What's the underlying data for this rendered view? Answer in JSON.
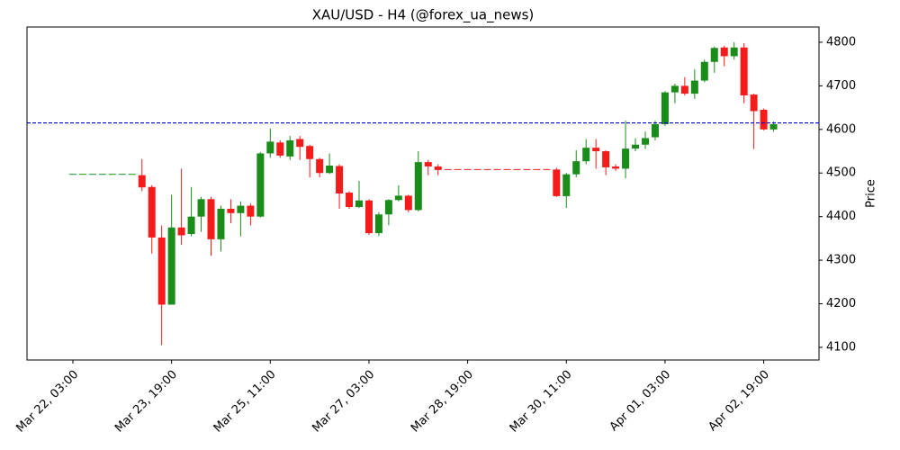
{
  "chart_data": {
    "type": "candlestick",
    "title": "XAU/USD - H4 (@forex_ua_news)",
    "y_label": "Price",
    "categories": [
      "Mar 22, 03:00",
      null,
      null,
      null,
      null,
      null,
      null,
      null,
      null,
      null,
      "Mar 23, 19:00",
      null,
      null,
      null,
      null,
      null,
      null,
      null,
      null,
      null,
      "Mar 25, 11:00",
      null,
      null,
      null,
      null,
      null,
      null,
      null,
      null,
      null,
      "Mar 27, 03:00",
      null,
      null,
      null,
      null,
      null,
      null,
      null,
      null,
      null,
      "Mar 28, 19:00",
      null,
      null,
      null,
      null,
      null,
      null,
      null,
      null,
      null,
      "Mar 30, 11:00",
      null,
      null,
      null,
      null,
      null,
      null,
      null,
      null,
      null,
      "Apr 01, 03:00",
      null,
      null,
      null,
      null,
      null,
      null,
      null,
      null,
      null,
      "Apr 02, 19:00",
      null
    ],
    "open": [
      4497,
      4497,
      4497,
      4497,
      4497,
      4497,
      4497,
      4495,
      4468,
      4352,
      4198,
      4375,
      4360,
      4400,
      4440,
      4348,
      4418,
      4408,
      4425,
      4400,
      4545,
      4570,
      4538,
      4578,
      4562,
      4532,
      4500,
      4516,
      4455,
      4422,
      4437,
      4362,
      4405,
      4438,
      4448,
      4415,
      4525,
      4515,
      4508,
      4508,
      4508,
      4508,
      4508,
      4508,
      4508,
      4508,
      4508,
      4508,
      4508,
      4508,
      4447,
      4497,
      4527,
      4558,
      4550,
      4515,
      4510,
      4556,
      4565,
      4582,
      4612,
      4685,
      4700,
      4682,
      4712,
      4755,
      4788,
      4768,
      4788,
      4680,
      4645,
      4600
    ],
    "high": [
      4497,
      4497,
      4497,
      4497,
      4497,
      4497,
      4497,
      4532,
      4472,
      4380,
      4450,
      4510,
      4468,
      4445,
      4445,
      4425,
      4440,
      4435,
      4430,
      4548,
      4602,
      4575,
      4585,
      4585,
      4565,
      4535,
      4545,
      4520,
      4458,
      4482,
      4440,
      4410,
      4440,
      4472,
      4450,
      4550,
      4530,
      4520,
      4508,
      4508,
      4508,
      4508,
      4508,
      4508,
      4508,
      4508,
      4508,
      4508,
      4508,
      4512,
      4500,
      4552,
      4578,
      4578,
      4552,
      4520,
      4620,
      4580,
      4595,
      4620,
      4688,
      4705,
      4720,
      4738,
      4760,
      4790,
      4792,
      4800,
      4798,
      4682,
      4648,
      4618
    ],
    "low": [
      4497,
      4497,
      4497,
      4497,
      4497,
      4497,
      4497,
      4458,
      4315,
      4105,
      4198,
      4335,
      4355,
      4365,
      4310,
      4320,
      4385,
      4355,
      4380,
      4398,
      4535,
      4535,
      4530,
      4530,
      4490,
      4490,
      4498,
      4418,
      4418,
      4420,
      4358,
      4355,
      4380,
      4435,
      4410,
      4412,
      4495,
      4495,
      4508,
      4508,
      4508,
      4508,
      4508,
      4508,
      4508,
      4508,
      4508,
      4508,
      4508,
      4445,
      4420,
      4490,
      4520,
      4510,
      4495,
      4505,
      4488,
      4550,
      4555,
      4575,
      4608,
      4660,
      4678,
      4670,
      4708,
      4730,
      4745,
      4760,
      4660,
      4555,
      4598,
      4595
    ],
    "close": [
      4497,
      4497,
      4497,
      4497,
      4497,
      4497,
      4497,
      4467,
      4352,
      4198,
      4375,
      4357,
      4400,
      4440,
      4348,
      4418,
      4408,
      4425,
      4400,
      4545,
      4572,
      4540,
      4575,
      4560,
      4532,
      4500,
      4517,
      4453,
      4422,
      4437,
      4362,
      4405,
      4438,
      4448,
      4415,
      4525,
      4515,
      4507,
      4508,
      4508,
      4508,
      4508,
      4508,
      4508,
      4508,
      4508,
      4508,
      4508,
      4508,
      4447,
      4497,
      4527,
      4558,
      4550,
      4513,
      4510,
      4556,
      4565,
      4580,
      4612,
      4685,
      4700,
      4682,
      4712,
      4755,
      4787,
      4768,
      4788,
      4678,
      4642,
      4600,
      4612
    ],
    "colors": [
      "#1a8c1a",
      "#1a8c1a",
      "#1a8c1a",
      "#1a8c1a",
      "#1a8c1a",
      "#1a8c1a",
      "#1a8c1a",
      "#f51b1b",
      "#f51b1b",
      "#f51b1b",
      "#1a8c1a",
      "#f51b1b",
      "#1a8c1a",
      "#1a8c1a",
      "#f51b1b",
      "#1a8c1a",
      "#f51b1b",
      "#1a8c1a",
      "#f51b1b",
      "#1a8c1a",
      "#1a8c1a",
      "#f51b1b",
      "#1a8c1a",
      "#f51b1b",
      "#f51b1b",
      "#f51b1b",
      "#1a8c1a",
      "#f51b1b",
      "#f51b1b",
      "#1a8c1a",
      "#f51b1b",
      "#1a8c1a",
      "#1a8c1a",
      "#1a8c1a",
      "#f51b1b",
      "#1a8c1a",
      "#f51b1b",
      "#f51b1b",
      "#f51b1b",
      "#f51b1b",
      "#f51b1b",
      "#f51b1b",
      "#f51b1b",
      "#f51b1b",
      "#f51b1b",
      "#f51b1b",
      "#f51b1b",
      "#f51b1b",
      "#f51b1b",
      "#f51b1b",
      "#1a8c1a",
      "#1a8c1a",
      "#1a8c1a",
      "#f51b1b",
      "#f51b1b",
      "#f51b1b",
      "#1a8c1a",
      "#1a8c1a",
      "#1a8c1a",
      "#1a8c1a",
      "#1a8c1a",
      "#1a8c1a",
      "#f51b1b",
      "#1a8c1a",
      "#1a8c1a",
      "#1a8c1a",
      "#f51b1b",
      "#1a8c1a",
      "#f51b1b",
      "#f51b1b",
      "#f51b1b",
      "#1a8c1a"
    ],
    "hline": 4615,
    "hline_color": "#0000cc",
    "ylim": [
      4071,
      4835
    ],
    "yticks": [
      4100,
      4200,
      4300,
      4400,
      4500,
      4600,
      4700,
      4800
    ],
    "y_axis_side": "right"
  }
}
